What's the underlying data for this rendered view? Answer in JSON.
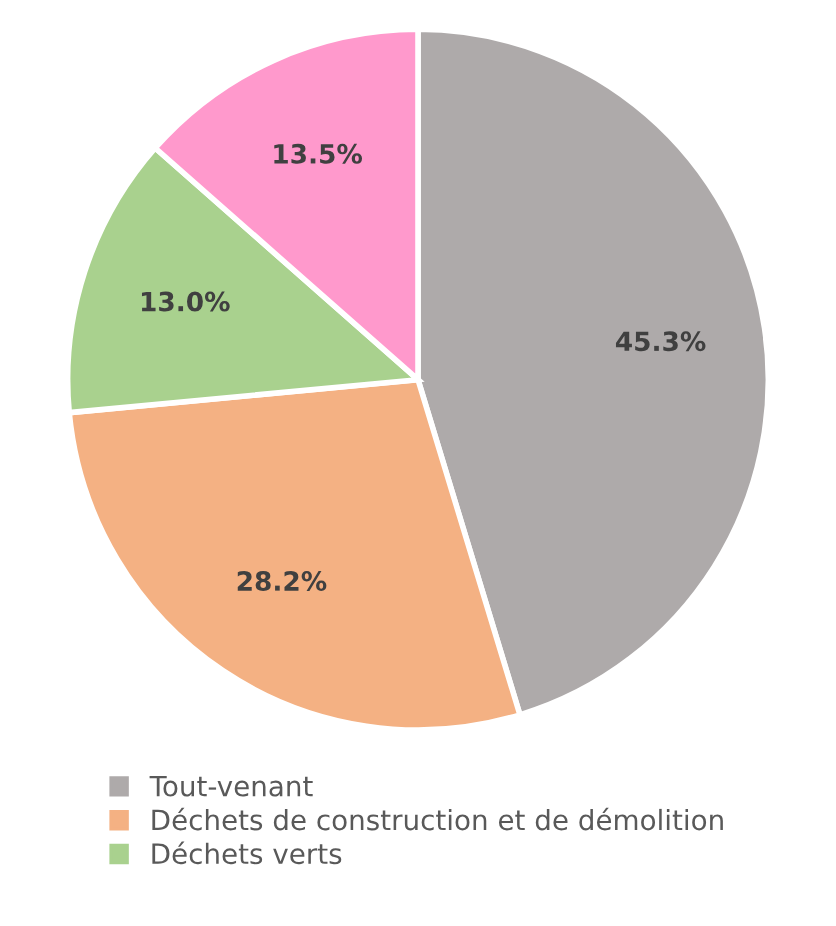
{
  "chart_data": {
    "type": "pie",
    "categories": [
      "Tout-venant",
      "Déchets de construction et de démolition",
      "Déchets verts",
      null
    ],
    "values": [
      45.3,
      28.2,
      13.0,
      13.5
    ],
    "colors": [
      "#aeaaaa",
      "#f4b183",
      "#a9d18e",
      "#ff99cc"
    ],
    "value_labels": [
      "45.3%",
      "28.2%",
      "13.0%",
      "13.5%"
    ],
    "legend": "bottom"
  }
}
